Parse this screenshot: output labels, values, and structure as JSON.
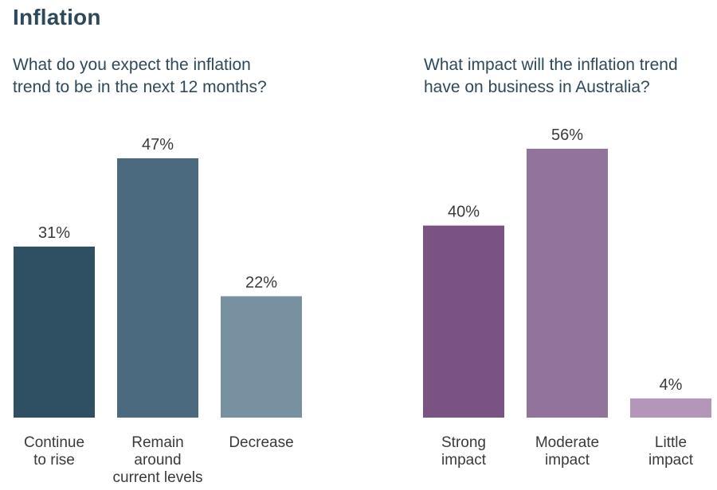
{
  "page": {
    "title": "Inflation"
  },
  "chart_data": [
    {
      "type": "bar",
      "title": "What do you expect the inflation\ntrend to be in the next 12 months?",
      "categories": [
        "Continue\nto rise",
        "Remain\naround\ncurrent levels",
        "Decrease"
      ],
      "values": [
        31,
        47,
        22
      ],
      "value_labels": [
        "31%",
        "47%",
        "22%"
      ],
      "colors": [
        "#2f4f63",
        "#4c6a7f",
        "#7891a1"
      ],
      "ylim": [
        0,
        47
      ],
      "xlabel": "",
      "ylabel": "",
      "grid": false,
      "legend": "none"
    },
    {
      "type": "bar",
      "title": "What impact will the inflation trend\nhave on business in Australia?",
      "categories": [
        "Strong\nimpact",
        "Moderate\nimpact",
        "Little\nimpact"
      ],
      "values": [
        40,
        56,
        4
      ],
      "value_labels": [
        "40%",
        "56%",
        "4%"
      ],
      "colors": [
        "#7a5283",
        "#92739c",
        "#b496ba"
      ],
      "ylim": [
        0,
        56
      ],
      "xlabel": "",
      "ylabel": "",
      "grid": false,
      "legend": "none"
    }
  ]
}
